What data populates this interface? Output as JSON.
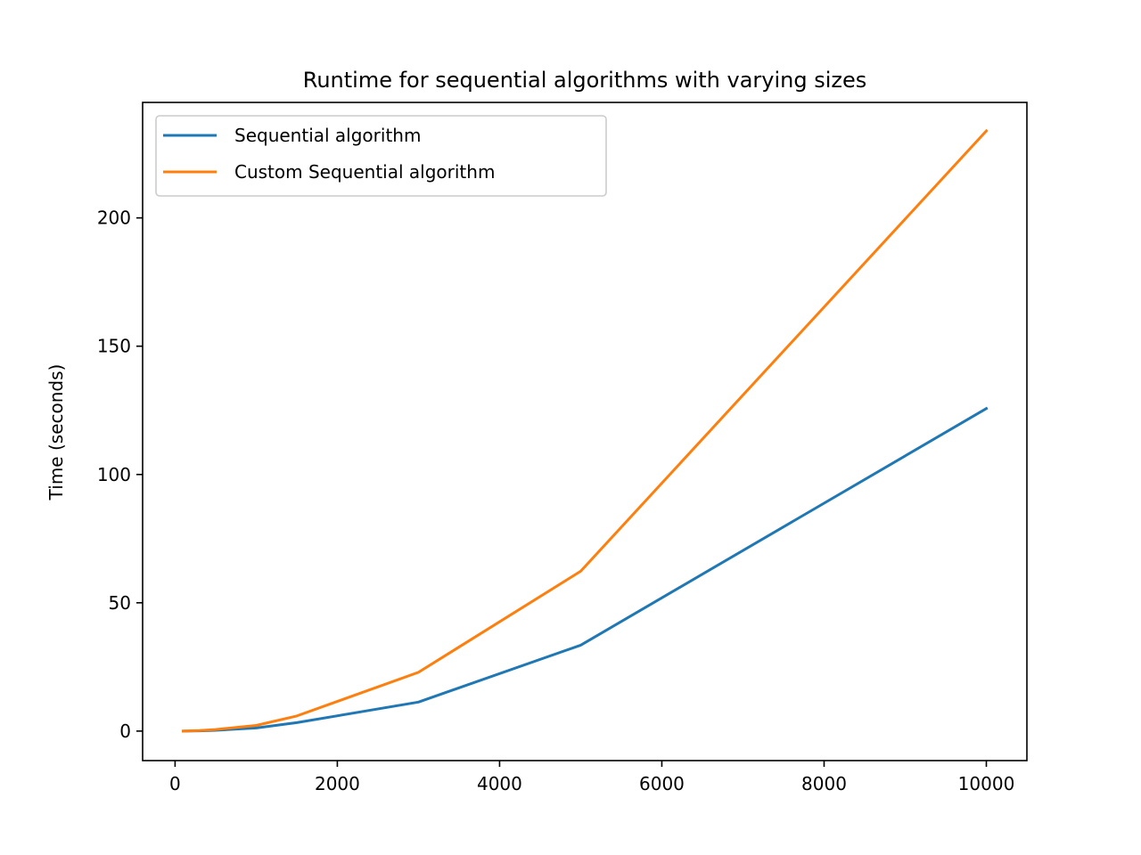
{
  "chart_data": {
    "type": "line",
    "title": "Runtime for sequential algorithms with varying sizes",
    "xlabel": "",
    "ylabel": "Time (seconds)",
    "xlim": [
      -400,
      10500
    ],
    "ylim": [
      -11.5,
      245
    ],
    "xticks": [
      0,
      2000,
      4000,
      6000,
      8000,
      10000
    ],
    "yticks": [
      0,
      50,
      100,
      150,
      200
    ],
    "grid": false,
    "legend_position": "top-left",
    "series": [
      {
        "name": "Sequential algorithm",
        "color": "#1f77b4",
        "x": [
          100,
          300,
          500,
          1000,
          1500,
          3000,
          5000,
          10000
        ],
        "y": [
          0.0,
          0.1,
          0.3,
          1.2,
          3.3,
          11.3,
          33.5,
          125.7
        ]
      },
      {
        "name": "Custom Sequential algorithm",
        "color": "#ff7f0e",
        "x": [
          100,
          300,
          500,
          1000,
          1500,
          3000,
          5000,
          10000
        ],
        "y": [
          0.0,
          0.2,
          0.6,
          2.2,
          5.9,
          22.9,
          62.3,
          233.9
        ]
      }
    ]
  }
}
